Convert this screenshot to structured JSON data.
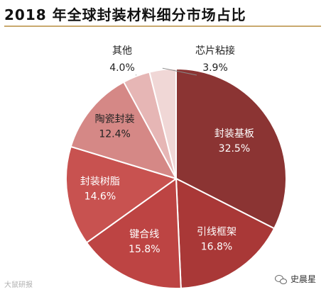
{
  "chart_data": {
    "type": "pie",
    "title": "2018 年全球封装材料细分市场占比",
    "categories": [
      "封装基板",
      "引线框架",
      "键合线",
      "封装树脂",
      "陶瓷封装",
      "其他",
      "芯片粘接"
    ],
    "values": [
      32.5,
      16.8,
      15.8,
      14.6,
      12.4,
      4.0,
      3.9
    ],
    "value_labels": [
      "32.5%",
      "16.8%",
      "15.8%",
      "14.6%",
      "12.4%",
      "4.0%",
      "3.9%"
    ],
    "colors": [
      "#8b3433",
      "#a93837",
      "#bd4443",
      "#c85250",
      "#d58886",
      "#e6b6b5",
      "#f0d7d6"
    ],
    "label_colors": [
      "#ffffff",
      "#ffffff",
      "#ffffff",
      "#ffffff",
      "#222222",
      "#222222",
      "#222222"
    ],
    "legend": "none"
  },
  "footer": {
    "watermark": "大鼠研报",
    "source": "史晨星"
  }
}
